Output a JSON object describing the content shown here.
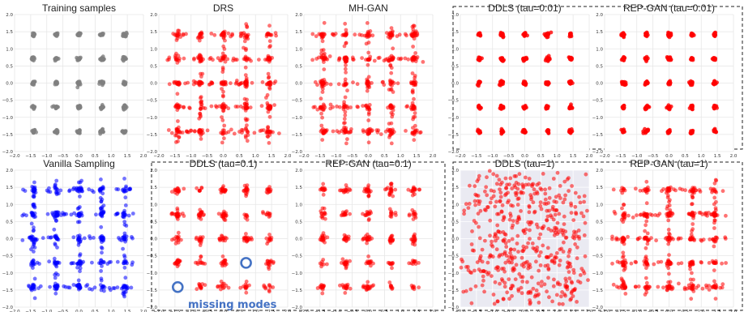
{
  "chart_data": [
    {
      "type": "scatter",
      "title": "Training samples",
      "color": "#808080",
      "pattern": "grid-tight",
      "xlim": [
        -2,
        2
      ],
      "ylim": [
        -2,
        2
      ],
      "grid": true,
      "background": "#ffffff"
    },
    {
      "type": "scatter",
      "title": "DRS",
      "color": "#ff0000",
      "pattern": "grid-spread",
      "xlim": [
        -2,
        2
      ],
      "ylim": [
        -2,
        2
      ],
      "grid": true,
      "background": "#ffffff"
    },
    {
      "type": "scatter",
      "title": "MH-GAN",
      "color": "#ff0000",
      "pattern": "grid-spread",
      "xlim": [
        -2,
        2
      ],
      "ylim": [
        -2,
        2
      ],
      "grid": true,
      "background": "#ffffff"
    },
    {
      "type": "scatter",
      "title": "DDLS (tau=0.01)",
      "color": "#ff0000",
      "pattern": "grid-tight",
      "xlim": [
        -2,
        2
      ],
      "ylim": [
        -2,
        2
      ],
      "grid": true,
      "background": "#ffffff"
    },
    {
      "type": "scatter",
      "title": "REP-GAN (tau=0.01)",
      "color": "#ff0000",
      "pattern": "grid-tight",
      "xlim": [
        -2,
        2
      ],
      "ylim": [
        -2,
        2
      ],
      "grid": true,
      "background": "#ffffff"
    },
    {
      "type": "scatter",
      "title": "Vanilla Sampling",
      "color": "#0000ff",
      "pattern": "grid-spread",
      "xlim": [
        -2,
        2
      ],
      "ylim": [
        -2,
        2
      ],
      "grid": true,
      "background": "#ffffff"
    },
    {
      "type": "scatter",
      "title": "DDLS (tau=0.1)",
      "color": "#ff0000",
      "pattern": "grid-missing",
      "xlim": [
        -2,
        2
      ],
      "ylim": [
        -2,
        2
      ],
      "grid": true,
      "background": "#ffffff",
      "annotation": "missing modes",
      "missing_modes": [
        [
          -1.414,
          -1.414
        ],
        [
          0.707,
          -0.707
        ]
      ]
    },
    {
      "type": "scatter",
      "title": "REP-GAN (tau=0.1)",
      "color": "#ff0000",
      "pattern": "grid-medium",
      "xlim": [
        -2,
        2
      ],
      "ylim": [
        -2,
        2
      ],
      "grid": true,
      "background": "#ffffff"
    },
    {
      "type": "scatter",
      "title": "DDLS (tau=1)",
      "color": "#ff0000",
      "pattern": "diffuse",
      "xlim": [
        -2,
        2
      ],
      "ylim": [
        -2,
        2
      ],
      "grid": true,
      "background": "#eaeaf2"
    },
    {
      "type": "scatter",
      "title": "REP-GAN (tau=1)",
      "color": "#ff0000",
      "pattern": "grid-spread",
      "xlim": [
        -2,
        2
      ],
      "ylim": [
        -2,
        2
      ],
      "grid": true,
      "background": "#ffffff"
    }
  ],
  "axes": {
    "ticks": [
      -2.0,
      -1.5,
      -1.0,
      -0.5,
      0.0,
      0.5,
      1.0,
      1.5,
      2.0
    ],
    "x_tick_labels": [
      "−2.0",
      "−1.5",
      "−1.0",
      "−0.5",
      "0.0",
      "0.5",
      "1.0",
      "1.5",
      "2.0"
    ],
    "y_tick_labels": [
      "−2.0",
      "−1.5",
      "−1.0",
      "−0.5",
      "0.0",
      "0.5",
      "1.0",
      "1.5",
      "2.0"
    ],
    "mode_centers": [
      -1.414,
      -0.707,
      0.0,
      0.707,
      1.414
    ]
  },
  "annotation_color": "#4472c4"
}
